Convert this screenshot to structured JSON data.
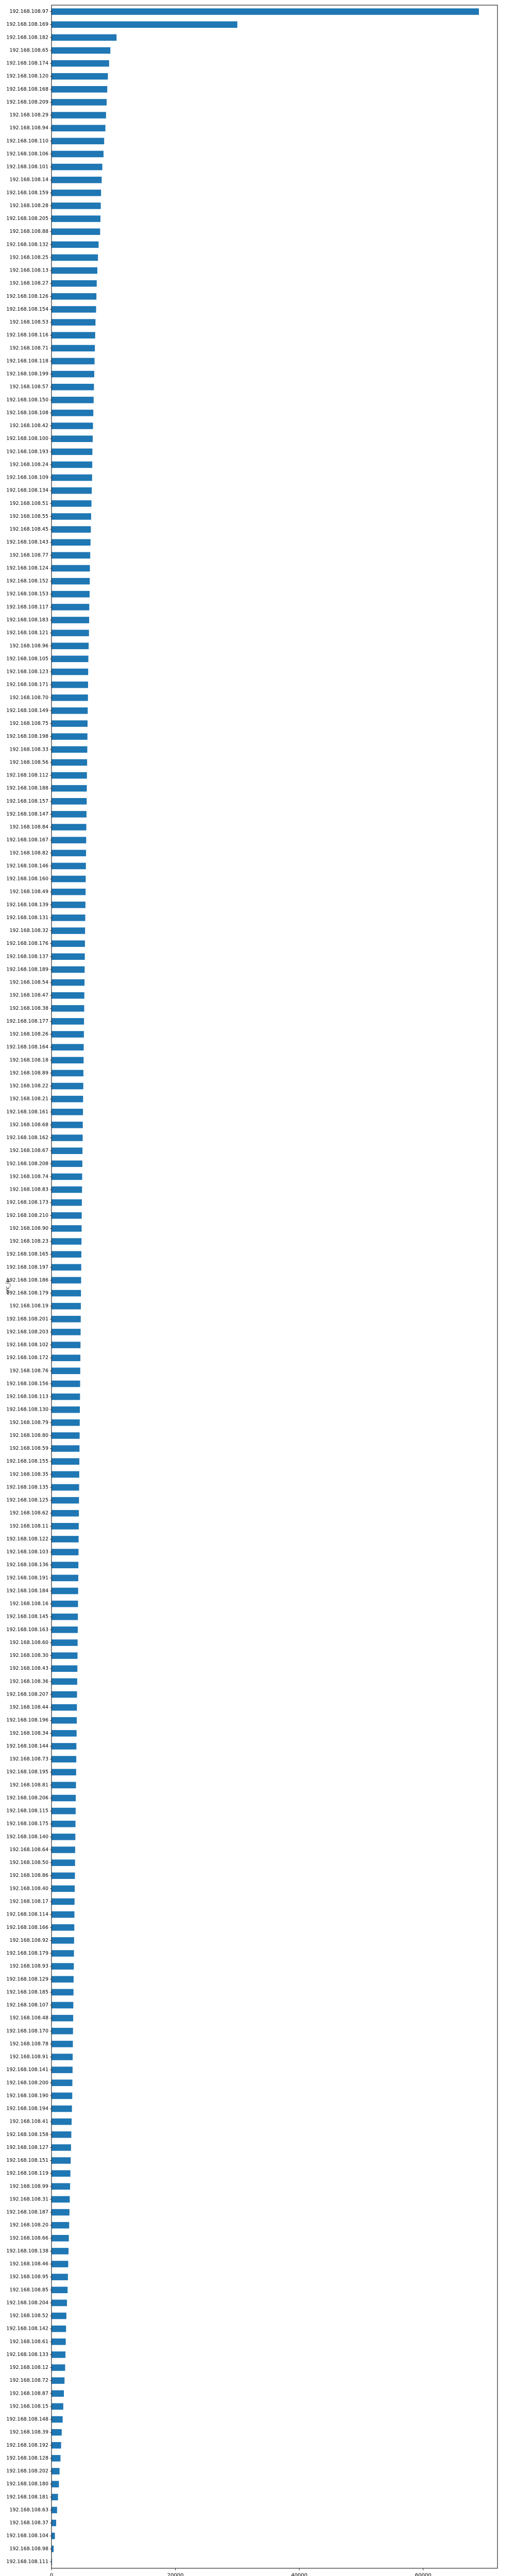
{
  "chart_data": {
    "type": "bar",
    "orientation": "horizontal",
    "title": "",
    "xlabel": "",
    "ylabel": "src_ip",
    "xlim": [
      0,
      72000
    ],
    "xticks": [
      0,
      20000,
      40000,
      60000
    ],
    "grid": false,
    "legend": "none",
    "bar_color": "#1f77b4",
    "categories": [
      "192.168.108.97",
      "192.168.108.169",
      "192.168.108.182",
      "192.168.108.65",
      "192.168.108.174",
      "192.168.108.120",
      "192.168.108.168",
      "192.168.108.209",
      "192.168.108.29",
      "192.168.108.94",
      "192.168.108.110",
      "192.168.108.106",
      "192.168.108.101",
      "192.168.108.14",
      "192.168.108.159",
      "192.168.108.28",
      "192.168.108.205",
      "192.168.108.88",
      "192.168.108.132",
      "192.168.108.25",
      "192.168.108.13",
      "192.168.108.27",
      "192.168.108.126",
      "192.168.108.154",
      "192.168.108.53",
      "192.168.108.116",
      "192.168.108.71",
      "192.168.108.118",
      "192.168.108.199",
      "192.168.108.57",
      "192.168.108.150",
      "192.168.108.108",
      "192.168.108.42",
      "192.168.108.100",
      "192.168.108.193",
      "192.168.108.24",
      "192.168.108.109",
      "192.168.108.134",
      "192.168.108.51",
      "192.168.108.55",
      "192.168.108.45",
      "192.168.108.143",
      "192.168.108.77",
      "192.168.108.124",
      "192.168.108.152",
      "192.168.108.153",
      "192.168.108.117",
      "192.168.108.183",
      "192.168.108.121",
      "192.168.108.96",
      "192.168.108.105",
      "192.168.108.123",
      "192.168.108.171",
      "192.168.108.70",
      "192.168.108.149",
      "192.168.108.75",
      "192.168.108.198",
      "192.168.108.33",
      "192.168.108.56",
      "192.168.108.112",
      "192.168.108.188",
      "192.168.108.157",
      "192.168.108.147",
      "192.168.108.84",
      "192.168.108.167",
      "192.168.108.82",
      "192.168.108.146",
      "192.168.108.160",
      "192.168.108.49",
      "192.168.108.139",
      "192.168.108.131",
      "192.168.108.32",
      "192.168.108.176",
      "192.168.108.137",
      "192.168.108.189",
      "192.168.108.54",
      "192.168.108.47",
      "192.168.108.38",
      "192.168.108.177",
      "192.168.108.26",
      "192.168.108.164",
      "192.168.108.18",
      "192.168.108.89",
      "192.168.108.22",
      "192.168.108.21",
      "192.168.108.161",
      "192.168.108.68",
      "192.168.108.162",
      "192.168.108.67",
      "192.168.108.208",
      "192.168.108.74",
      "192.168.108.83",
      "192.168.108.173",
      "192.168.108.210",
      "192.168.108.90",
      "192.168.108.23",
      "192.168.108.165",
      "192.168.108.197",
      "192.168.108.186",
      "192.168.108.179",
      "192.168.108.19",
      "192.168.108.201",
      "192.168.108.203",
      "192.168.108.102",
      "192.168.108.172",
      "192.168.108.76",
      "192.168.108.156",
      "192.168.108.113",
      "192.168.108.130",
      "192.168.108.79",
      "192.168.108.80",
      "192.168.108.59",
      "192.168.108.155",
      "192.168.108.35",
      "192.168.108.135",
      "192.168.108.125",
      "192.168.108.62",
      "192.168.108.11",
      "192.168.108.122",
      "192.168.108.103",
      "192.168.108.136",
      "192.168.108.191",
      "192.168.108.184",
      "192.168.108.16",
      "192.168.108.145",
      "192.168.108.163",
      "192.168.108.60",
      "192.168.108.30",
      "192.168.108.43",
      "192.168.108.36",
      "192.168.108.207",
      "192.168.108.44",
      "192.168.108.196",
      "192.168.108.34",
      "192.168.108.144",
      "192.168.108.73",
      "192.168.108.195",
      "192.168.108.81",
      "192.168.108.206",
      "192.168.108.115",
      "192.168.108.175",
      "192.168.108.140",
      "192.168.108.64",
      "192.168.108.50",
      "192.168.108.86",
      "192.168.108.40",
      "192.168.108.17",
      "192.168.108.114",
      "192.168.108.166",
      "192.168.108.92",
      "192.168.108.179",
      "192.168.108.93",
      "192.168.108.129",
      "192.168.108.185",
      "192.168.108.107",
      "192.168.108.48",
      "192.168.108.170",
      "192.168.108.78",
      "192.168.108.91",
      "192.168.108.141",
      "192.168.108.200",
      "192.168.108.190",
      "192.168.108.194",
      "192.168.108.41",
      "192.168.108.158",
      "192.168.108.127",
      "192.168.108.151",
      "192.168.108.119",
      "192.168.108.99",
      "192.168.108.31",
      "192.168.108.187",
      "192.168.108.20",
      "192.168.108.66",
      "192.168.108.138",
      "192.168.108.46",
      "192.168.108.95",
      "192.168.108.85",
      "192.168.108.204",
      "192.168.108.52",
      "192.168.108.142",
      "192.168.108.61",
      "192.168.108.133",
      "192.168.108.12",
      "192.168.108.72",
      "192.168.108.87",
      "192.168.108.15",
      "192.168.108.148",
      "192.168.108.39",
      "192.168.108.192",
      "192.168.108.128",
      "192.168.108.202",
      "192.168.108.180",
      "192.168.108.181",
      "192.168.108.63",
      "192.168.108.37",
      "192.168.108.104",
      "192.168.108.98",
      "192.168.108.111"
    ],
    "values": [
      69000,
      30000,
      10500,
      9500,
      9300,
      9100,
      9000,
      8900,
      8800,
      8700,
      8500,
      8400,
      8200,
      8100,
      8000,
      7950,
      7900,
      7850,
      7600,
      7500,
      7400,
      7300,
      7250,
      7200,
      7100,
      7050,
      7000,
      6950,
      6900,
      6850,
      6800,
      6750,
      6700,
      6650,
      6600,
      6580,
      6550,
      6500,
      6450,
      6400,
      6350,
      6300,
      6250,
      6200,
      6180,
      6150,
      6100,
      6080,
      6050,
      6000,
      5950,
      5920,
      5900,
      5880,
      5850,
      5820,
      5800,
      5780,
      5750,
      5720,
      5700,
      5680,
      5650,
      5620,
      5600,
      5580,
      5550,
      5520,
      5500,
      5480,
      5450,
      5420,
      5400,
      5380,
      5350,
      5330,
      5300,
      5280,
      5250,
      5230,
      5200,
      5180,
      5150,
      5130,
      5100,
      5080,
      5050,
      5030,
      5000,
      4980,
      4950,
      4930,
      4900,
      4880,
      4860,
      4840,
      4820,
      4800,
      4780,
      4760,
      4740,
      4720,
      4700,
      4680,
      4660,
      4640,
      4620,
      4600,
      4580,
      4560,
      4540,
      4520,
      4500,
      4480,
      4460,
      4440,
      4420,
      4400,
      4380,
      4360,
      4340,
      4320,
      4300,
      4280,
      4260,
      4240,
      4220,
      4200,
      4180,
      4150,
      4120,
      4100,
      4080,
      4050,
      4020,
      4000,
      3980,
      3950,
      3920,
      3900,
      3870,
      3850,
      3820,
      3800,
      3780,
      3750,
      3720,
      3700,
      3680,
      3650,
      3620,
      3600,
      3570,
      3550,
      3520,
      3500,
      3470,
      3450,
      3420,
      3400,
      3370,
      3350,
      3300,
      3250,
      3200,
      3150,
      3100,
      3050,
      3000,
      2950,
      2900,
      2850,
      2800,
      2750,
      2700,
      2650,
      2600,
      2500,
      2400,
      2350,
      2300,
      2250,
      2200,
      2100,
      2000,
      1900,
      1800,
      1650,
      1550,
      1450,
      1300,
      1200,
      1050,
      900,
      750,
      550,
      350,
      80
    ]
  }
}
